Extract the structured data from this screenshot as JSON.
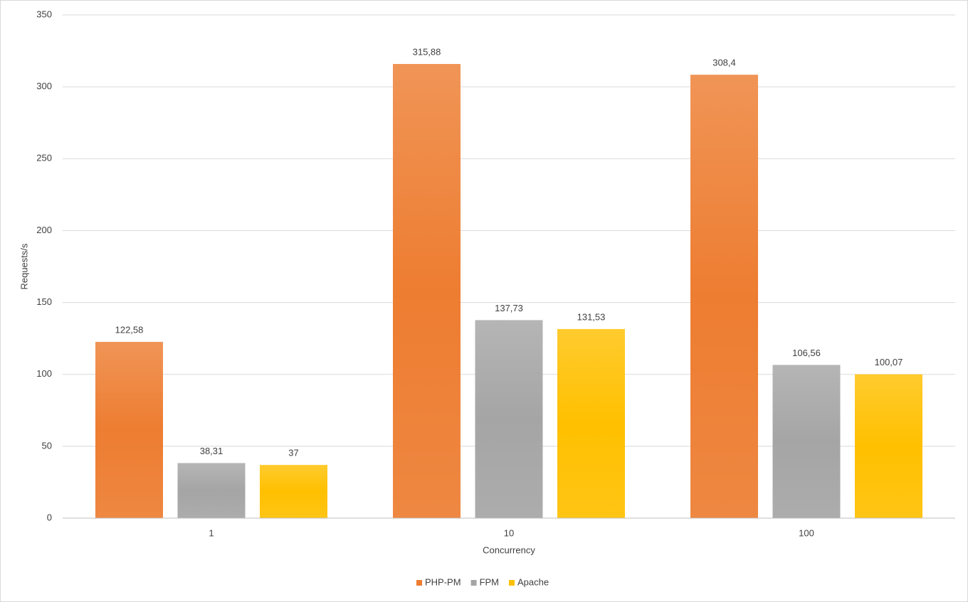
{
  "chart_data": {
    "type": "bar",
    "categories": [
      "1",
      "10",
      "100"
    ],
    "x_label": "Concurrency",
    "y_label": "Requests/s",
    "series": [
      {
        "name": "PHP-PM",
        "color": "#ED7D31",
        "values": [
          122.58,
          315.88,
          308.4
        ],
        "value_labels": [
          "122,58",
          "315,88",
          "308,4"
        ]
      },
      {
        "name": "FPM",
        "color": "#A5A5A5",
        "values": [
          38.31,
          137.73,
          106.56
        ],
        "value_labels": [
          "38,31",
          "137,73",
          "106,56"
        ]
      },
      {
        "name": "Apache",
        "color": "#FFC000",
        "values": [
          37,
          131.53,
          100.07
        ],
        "value_labels": [
          "37",
          "131,53",
          "100,07"
        ]
      }
    ],
    "ylim": [
      0,
      350
    ],
    "yticks": [
      0,
      50,
      100,
      150,
      200,
      250,
      300,
      350
    ],
    "grid": true,
    "legend": "bottom"
  }
}
